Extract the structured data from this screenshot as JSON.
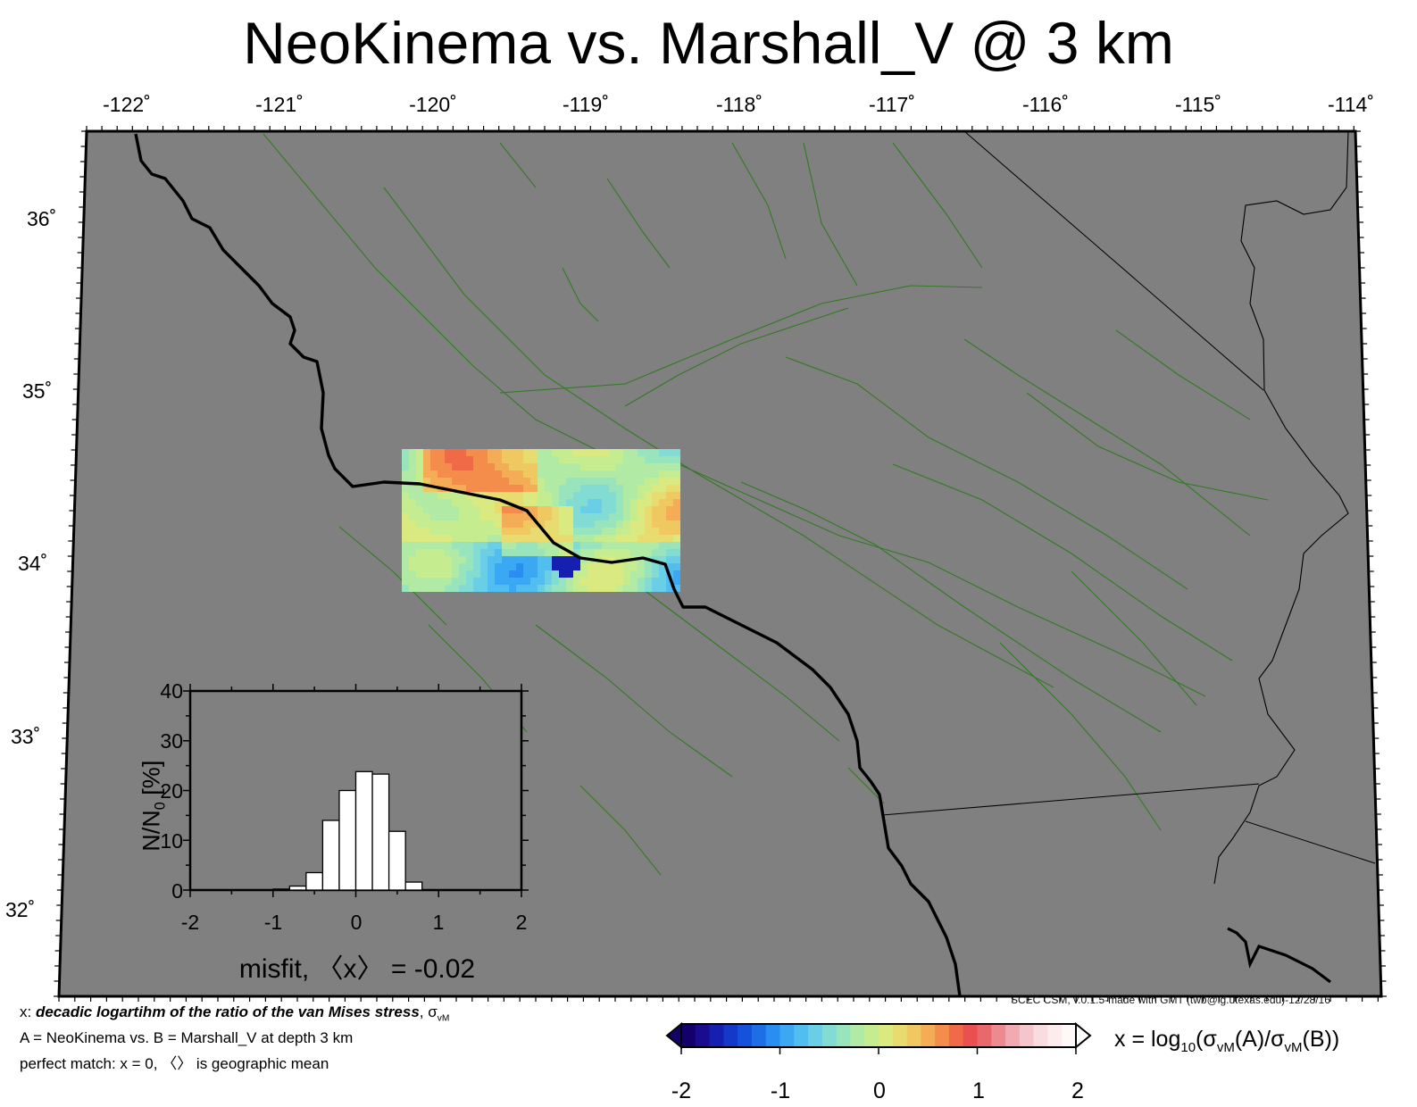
{
  "title": "NeoKinema vs. Marshall_V @ 3 km",
  "longitude_ticks": [
    "-122˚",
    "-121˚",
    "-120˚",
    "-119˚",
    "-118˚",
    "-117˚",
    "-116˚",
    "-115˚",
    "-114˚"
  ],
  "latitude_ticks": [
    "36˚",
    "35˚",
    "34˚",
    "33˚",
    "32˚"
  ],
  "credit": "SCEC CSM, v.0.1.5-made with GMT (twb@ig.utexas.edu)-12/28/16",
  "legend": {
    "line1_prefix": "x: ",
    "line1_bold": "decadic logartihm of the ratio of the van Mises stress",
    "line1_suffix": ", σ",
    "line1_sub": "vM",
    "line2": "A = NeoKinema vs.  B = Marshall_V at depth 3 km",
    "line3": "perfect match: x = 0, 〈〉 is geographic mean"
  },
  "colorbar": {
    "label_prefix": "x = log",
    "label_sub1": "10",
    "label_mid1": "(σ",
    "label_sub2": "vM",
    "label_mid2": "(A)/σ",
    "label_sub3": "vM",
    "label_end": "(B))",
    "ticks": [
      "-2",
      "-1",
      "0",
      "1",
      "2"
    ],
    "colors": [
      "#14006b",
      "#1a0c90",
      "#1620b0",
      "#1438c8",
      "#1552dc",
      "#1e6ee8",
      "#2a8ef0",
      "#3aa8f2",
      "#52bef0",
      "#6acfe6",
      "#82dcd4",
      "#98e4bc",
      "#b0eaa4",
      "#c6ec90",
      "#daea80",
      "#e8dc70",
      "#f0c862",
      "#f4ac56",
      "#f48c4c",
      "#f06a48",
      "#ea5050",
      "#e8686c",
      "#ec8a90",
      "#f0aab0",
      "#f4c6cc",
      "#f8dce0",
      "#fcecee",
      "#fff8f8"
    ]
  },
  "histogram": {
    "ylabel_main": "N/N",
    "ylabel_sub": "0",
    "ylabel_unit": " [%]",
    "xlabel": "misfit, 〈x〉 = -0.02",
    "yticks": [
      "0",
      "10",
      "20",
      "30",
      "40"
    ],
    "xticks": [
      "-2",
      "-1",
      "0",
      "1",
      "2"
    ],
    "ylim": [
      0,
      40
    ],
    "xlim": [
      -2,
      2
    ],
    "bin_edges": [
      -1.0,
      -0.8,
      -0.6,
      -0.4,
      -0.2,
      0.0,
      0.2,
      0.4,
      0.6,
      0.8
    ],
    "values": [
      0.2,
      0.8,
      3.5,
      14.0,
      20.0,
      23.8,
      23.3,
      11.8,
      1.6
    ]
  },
  "colors": {
    "land": "#808080",
    "faults": "#2e7a1e",
    "coastline": "#000000"
  }
}
